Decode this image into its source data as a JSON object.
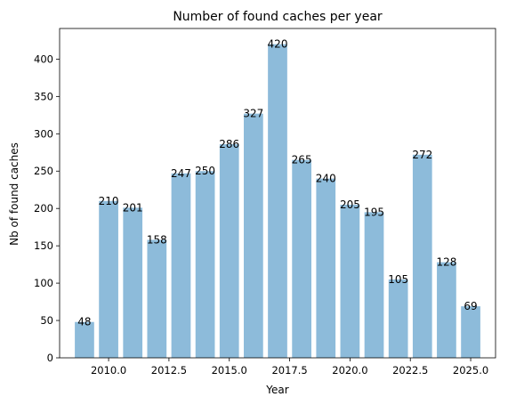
{
  "chart_data": {
    "type": "bar",
    "title": "Number of found caches per year",
    "xlabel": "Year",
    "ylabel": "Nb of found caches",
    "x": [
      2009,
      2010,
      2011,
      2012,
      2013,
      2014,
      2015,
      2016,
      2017,
      2018,
      2019,
      2020,
      2021,
      2022,
      2023,
      2024,
      2025
    ],
    "values": [
      48,
      210,
      201,
      158,
      247,
      250,
      286,
      327,
      420,
      265,
      240,
      205,
      195,
      105,
      272,
      128,
      69
    ],
    "data_labels": [
      "48",
      "210",
      "201",
      "158",
      "247",
      "250",
      "286",
      "327",
      "420",
      "265",
      "240",
      "205",
      "195",
      "105",
      "272",
      "128",
      "69"
    ],
    "xlim": [
      2007.97,
      2026.03
    ],
    "ylim": [
      0,
      441
    ],
    "xticks": [
      2010.0,
      2012.5,
      2015.0,
      2017.5,
      2020.0,
      2022.5,
      2025.0
    ],
    "xtick_labels": [
      "2010.0",
      "2012.5",
      "2015.0",
      "2017.5",
      "2020.0",
      "2022.5",
      "2025.0"
    ],
    "yticks": [
      0,
      50,
      100,
      150,
      200,
      250,
      300,
      350,
      400
    ],
    "ytick_labels": [
      "0",
      "50",
      "100",
      "150",
      "200",
      "250",
      "300",
      "350",
      "400"
    ],
    "bar_width": 0.8,
    "bar_color": "#8dbbda",
    "grid": false,
    "legend": "none"
  }
}
